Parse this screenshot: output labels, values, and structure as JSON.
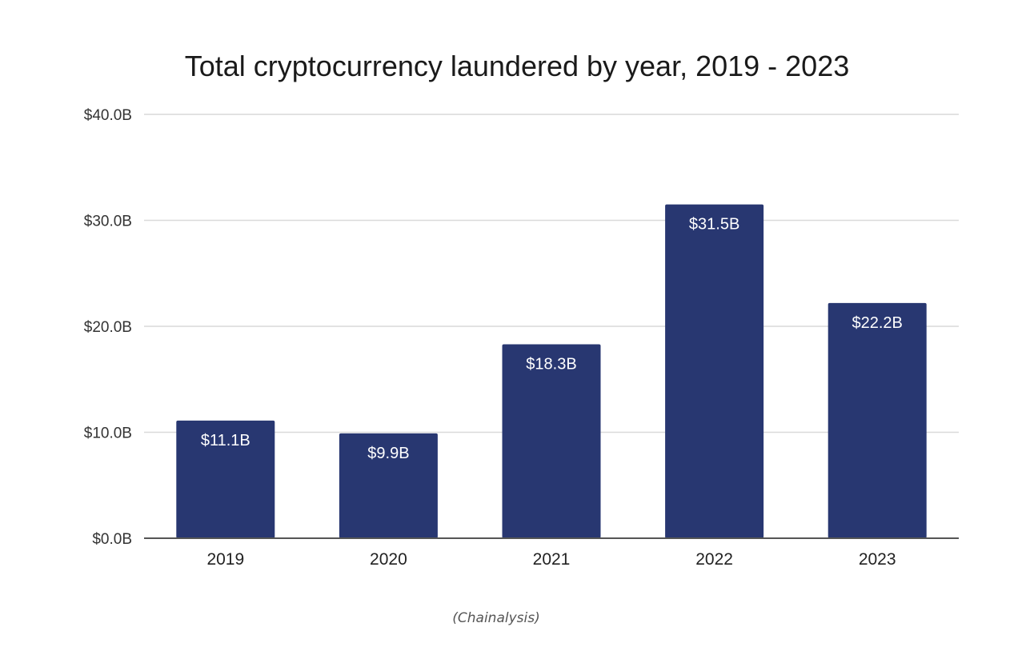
{
  "chart_data": {
    "type": "bar",
    "title": "Total cryptocurrency laundered by year, 2019 - 2023",
    "categories": [
      "2019",
      "2020",
      "2021",
      "2022",
      "2023"
    ],
    "values": [
      11.1,
      9.9,
      18.3,
      31.5,
      22.2
    ],
    "data_labels": [
      "$11.1B",
      "$9.9B",
      "$18.3B",
      "$31.5B",
      "$22.2B"
    ],
    "ylim": [
      0,
      40
    ],
    "yticks": [
      0,
      10,
      20,
      30,
      40
    ],
    "ytick_labels": [
      "$0.0B",
      "$10.0B",
      "$20.0B",
      "$30.0B",
      "$40.0B"
    ],
    "xlabel": "",
    "ylabel": "",
    "grid": true,
    "legend": "none",
    "bar_color": "#283771",
    "grid_color": "#d9d9d9",
    "axis_color": "#555555"
  },
  "caption": "(Chainalysis)"
}
